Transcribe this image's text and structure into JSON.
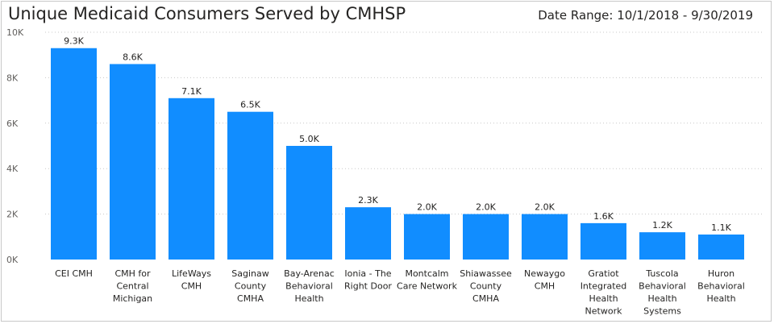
{
  "title": "Unique Medicaid Consumers Served by CMHSP",
  "date_range": "Date Range: 10/1/2018 - 9/30/2019",
  "colors": {
    "bar": "#118DFF",
    "grid": "#c8c8c8"
  },
  "chart_data": {
    "type": "bar",
    "title": "Unique Medicaid Consumers Served by CMHSP",
    "categories": [
      [
        "CEI CMH"
      ],
      [
        "CMH for",
        "Central",
        "Michigan"
      ],
      [
        "LifeWays",
        "CMH"
      ],
      [
        "Saginaw",
        "County",
        "CMHA"
      ],
      [
        "Bay-Arenac",
        "Behavioral",
        "Health"
      ],
      [
        "Ionia - The",
        "Right Door"
      ],
      [
        "Montcalm",
        "Care Network"
      ],
      [
        "Shiawassee",
        "County",
        "CMHA"
      ],
      [
        "Newaygo",
        "CMH"
      ],
      [
        "Gratiot",
        "Integrated",
        "Health",
        "Network"
      ],
      [
        "Tuscola",
        "Behavioral",
        "Health",
        "Systems"
      ],
      [
        "Huron",
        "Behavioral",
        "Health"
      ]
    ],
    "values": [
      9300,
      8600,
      7100,
      6500,
      5000,
      2300,
      2000,
      2000,
      2000,
      1600,
      1200,
      1100
    ],
    "data_labels": [
      "9.3K",
      "8.6K",
      "7.1K",
      "6.5K",
      "5.0K",
      "2.3K",
      "2.0K",
      "2.0K",
      "2.0K",
      "1.6K",
      "1.2K",
      "1.1K"
    ],
    "ylim": [
      0,
      10000
    ],
    "yticks": [
      0,
      2000,
      4000,
      6000,
      8000,
      10000
    ],
    "ytick_labels": [
      "0K",
      "2K",
      "4K",
      "6K",
      "8K",
      "10K"
    ],
    "grid": true,
    "xlabel": "",
    "ylabel": ""
  }
}
